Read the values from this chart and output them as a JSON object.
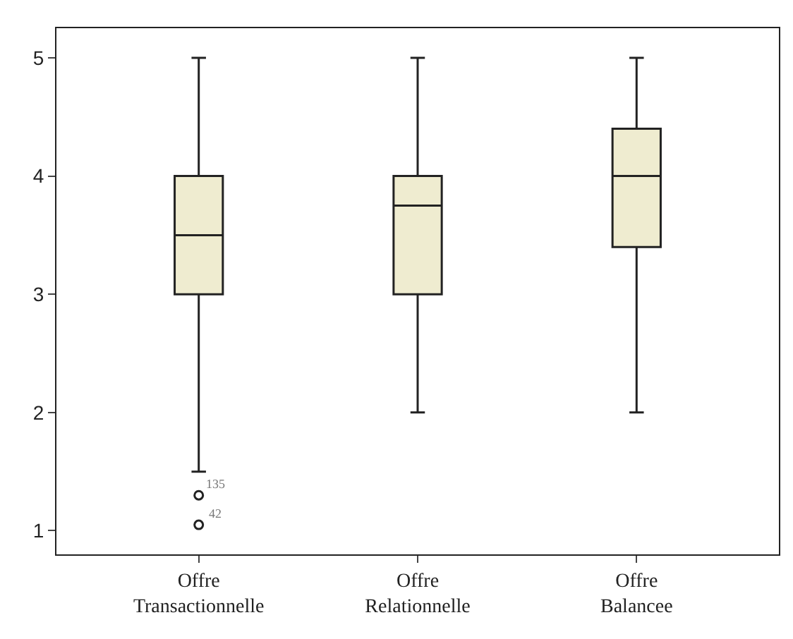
{
  "chart_data": {
    "type": "box",
    "categories": [
      "Offre Transactionnelle",
      "Offre Relationnelle",
      "Offre Balancee"
    ],
    "boxes": [
      {
        "low": 1.5,
        "q1": 3,
        "median": 3.5,
        "q3": 4,
        "high": 5,
        "outliers": [
          1.3,
          1.05
        ]
      },
      {
        "low": 2,
        "q1": 3,
        "median": 3.75,
        "q3": 4,
        "high": 5
      },
      {
        "low": 2,
        "q1": 3.4,
        "median": 4,
        "q3": 4.4,
        "high": 5
      }
    ],
    "color": "#efecd0",
    "ylim": [
      0.8,
      5.25
    ],
    "yticks": [
      1,
      2,
      3,
      4,
      5
    ],
    "legend": false,
    "annotations": [
      "135",
      "42"
    ]
  }
}
